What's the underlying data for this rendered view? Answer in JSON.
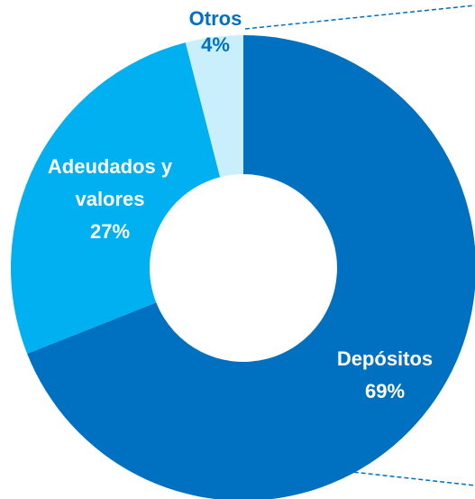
{
  "chart_data": {
    "type": "pie",
    "categories": [
      "Depósitos",
      "Adeudados y valores",
      "Otros"
    ],
    "values": [
      69,
      27,
      4
    ],
    "value_labels": [
      "69%",
      "27%",
      "4%"
    ],
    "colors": [
      "#0070c0",
      "#00b0f0",
      "#c9effc"
    ]
  }
}
